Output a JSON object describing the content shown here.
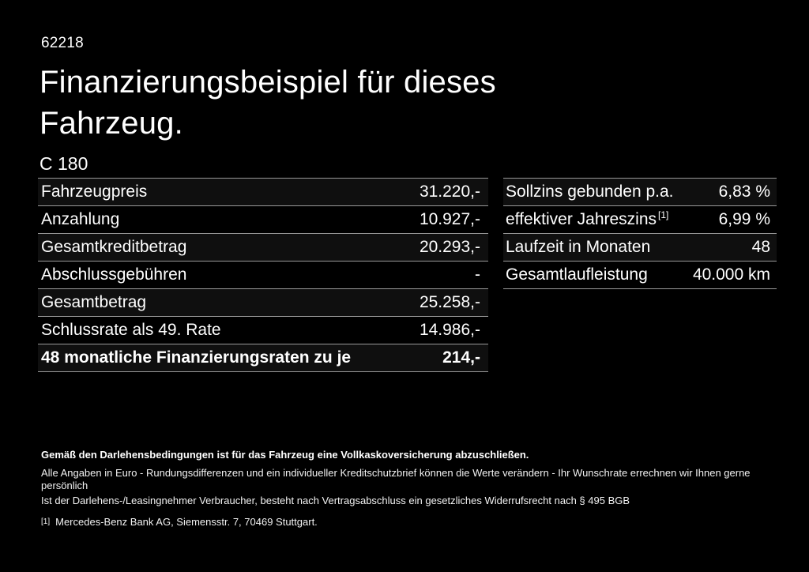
{
  "colors": {
    "background": "#000000",
    "text": "#ffffff",
    "divider": "#999999",
    "row_stripe": "#0f0f0f"
  },
  "header": {
    "doc_id": "62218",
    "title": "Finanzierungsbeispiel für dieses Fahrzeug.",
    "model": "C 180"
  },
  "tables": {
    "left": {
      "rows": [
        {
          "label": "Fahrzeugpreis",
          "value": "31.220,-"
        },
        {
          "label": "Anzahlung",
          "value": "10.927,-"
        },
        {
          "label": "Gesamtkreditbetrag",
          "value": "20.293,-"
        },
        {
          "label": "Abschlussgebühren",
          "value": "-"
        },
        {
          "label": "Gesamtbetrag",
          "value": "25.258,-"
        },
        {
          "label": "Schlussrate als 49. Rate",
          "value": "14.986,-"
        },
        {
          "label": "48 monatliche Finanzierungsraten zu je",
          "value": "214,-"
        }
      ]
    },
    "right": {
      "rows": [
        {
          "label": "Sollzins gebunden p.a.",
          "value": "6,83 %"
        },
        {
          "label": "effektiver Jahreszins",
          "sup": "[1]",
          "value": "6,99 %"
        },
        {
          "label": "Laufzeit in Monaten",
          "value": "48"
        },
        {
          "label": "Gesamtlaufleistung",
          "value": "40.000 km"
        }
      ]
    }
  },
  "footer": {
    "insurance_note": "Gemäß den Darlehensbedingungen ist für das Fahrzeug eine Vollkaskoversicherung abzuschließen.",
    "disclaimer_line1": "Alle Angaben in Euro - Rundungsdifferenzen und ein individueller Kreditschutzbrief können die Werte verändern - Ihr Wunschrate errechnen wir Ihnen gerne persönlich",
    "disclaimer_line2": "Ist der Darlehens-/Leasingnehmer Verbraucher, besteht nach Vertragsabschluss ein gesetzliches Widerrufsrecht nach § 495 BGB",
    "footnote_marker": "[1]",
    "footnote_text": "Mercedes-Benz Bank AG, Siemensstr. 7, 70469 Stuttgart."
  }
}
